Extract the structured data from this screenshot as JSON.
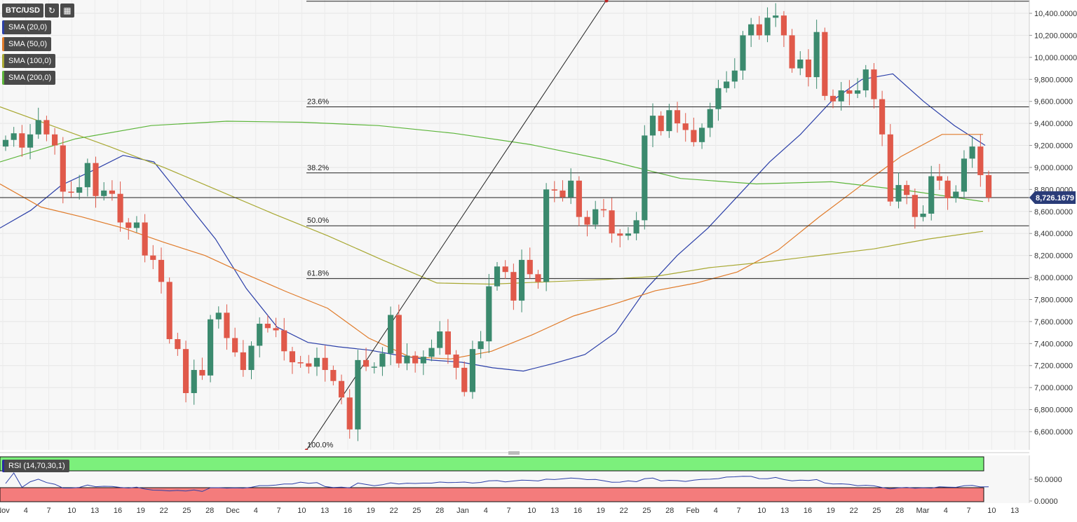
{
  "symbol": "BTC/USD",
  "indicators": [
    {
      "label": "SMA (20,0)",
      "color": "#2b3fa8"
    },
    {
      "label": "SMA (50,0)",
      "color": "#e07b2a"
    },
    {
      "label": "SMA (100,0)",
      "color": "#a8a832"
    },
    {
      "label": "SMA (200,0)",
      "color": "#5cb53a"
    }
  ],
  "rsi_label": "RSI (14,70,30,1)",
  "current_price": "8,726.1679",
  "chart_data": {
    "type": "candlestick",
    "x_tick_labels": [
      "Nov",
      "4",
      "7",
      "10",
      "13",
      "16",
      "19",
      "22",
      "25",
      "28",
      "Dec",
      "4",
      "7",
      "10",
      "13",
      "16",
      "19",
      "22",
      "25",
      "28",
      "Jan",
      "4",
      "7",
      "10",
      "13",
      "16",
      "19",
      "22",
      "25",
      "28",
      "Feb",
      "4",
      "7",
      "10",
      "13",
      "16",
      "19",
      "22",
      "25",
      "28",
      "Mar",
      "4",
      "7",
      "10",
      "13"
    ],
    "y_tick_labels": [
      "10,400.0000",
      "10,200.0000",
      "10,000.0000",
      "9,800.0000",
      "9,600.0000",
      "9,400.0000",
      "9,200.0000",
      "9,000.0000",
      "8,800.0000",
      "8,600.0000",
      "8,400.0000",
      "8,200.0000",
      "8,000.0000",
      "7,800.0000",
      "7,600.0000",
      "7,400.0000",
      "7,200.0000",
      "7,000.0000",
      "6,800.0000",
      "6,600.0000"
    ],
    "ylim": [
      6400,
      10500
    ],
    "fibonacci": [
      {
        "label": "23.6%",
        "price": 9550
      },
      {
        "label": "38.2%",
        "price": 8950
      },
      {
        "label": "50.0%",
        "price": 8470
      },
      {
        "label": "61.8%",
        "price": 7990
      },
      {
        "label": "100.0%",
        "price": 6430
      }
    ],
    "fib_top_price": 10510,
    "current_line_price": 8726,
    "closes": [
      9250,
      9310,
      9180,
      9300,
      9430,
      9300,
      9200,
      8780,
      8770,
      8820,
      9040,
      8740,
      8790,
      8760,
      8500,
      8450,
      8500,
      8200,
      8160,
      7960,
      7440,
      7350,
      6950,
      7160,
      7110,
      7620,
      7680,
      7450,
      7320,
      7160,
      7380,
      7580,
      7540,
      7520,
      7330,
      7230,
      7220,
      7190,
      7270,
      7160,
      7060,
      6910,
      6620,
      7250,
      7190,
      7190,
      7310,
      7660,
      7220,
      7290,
      7220,
      7280,
      7360,
      7510,
      7300,
      7180,
      6960,
      7350,
      7420,
      7920,
      8100,
      8050,
      7790,
      8160,
      8030,
      7960,
      8800,
      8790,
      8730,
      8880,
      8550,
      8480,
      8620,
      8610,
      8400,
      8380,
      8400,
      8520,
      9290,
      9470,
      9330,
      9520,
      9400,
      9340,
      9230,
      9360,
      9530,
      9720,
      9780,
      9880,
      10200,
      10300,
      10200,
      10360,
      10380,
      10200,
      9900,
      9980,
      9820,
      10230,
      9650,
      9600,
      9700,
      9670,
      9700,
      9890,
      9620,
      9300,
      8690,
      8840,
      8750,
      8550,
      8580,
      8920,
      8880,
      8720,
      8780,
      9080,
      9190,
      8930,
      8726
    ],
    "series": [
      {
        "name": "SMA (20,0)",
        "values": [
          8450,
          8610,
          8840,
          8970,
          9110,
          9050,
          8700,
          8350,
          7900,
          7550,
          7410,
          7370,
          7340,
          7290,
          7250,
          7230,
          7180,
          7150,
          7220,
          7300,
          7500,
          7900,
          8200,
          8450,
          8750,
          9050,
          9300,
          9600,
          9800,
          9850,
          9600,
          9380,
          9200
        ]
      },
      {
        "name": "SMA (50,0)",
        "values": [
          8850,
          8640,
          8550,
          8450,
          8320,
          8200,
          8030,
          7870,
          7720,
          7450,
          7280,
          7260,
          7330,
          7480,
          7650,
          7760,
          7880,
          7950,
          8050,
          8250,
          8550,
          8830,
          9100,
          9300,
          9300
        ]
      },
      {
        "name": "SMA (100,0)",
        "values": [
          9550,
          9370,
          9190,
          9000,
          8790,
          8580,
          8380,
          8160,
          7950,
          7940,
          7960,
          7980,
          8010,
          8090,
          8140,
          8200,
          8260,
          8350,
          8420
        ]
      },
      {
        "name": "SMA (200,0)",
        "values": [
          9050,
          9260,
          9380,
          9420,
          9410,
          9380,
          9310,
          9210,
          9070,
          8900,
          8850,
          8870,
          8790,
          8690
        ]
      }
    ]
  },
  "rsi": {
    "ticks": [
      "50.0000",
      "0.0000"
    ]
  }
}
